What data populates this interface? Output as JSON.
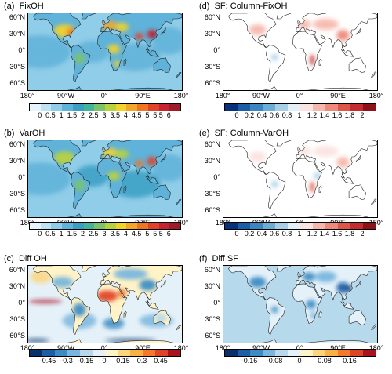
{
  "panels": [
    {
      "label": "(a)",
      "title": "FixOH"
    },
    {
      "label": "(b)",
      "title": "VarOH"
    },
    {
      "label": "(c)",
      "title": "Diff OH"
    },
    {
      "label": "(d)",
      "title": "SF: Column-FixOH"
    },
    {
      "label": "(e)",
      "title": "SF: Column-VarOH"
    },
    {
      "label": "(f)",
      "title": "Diff SF"
    }
  ],
  "lat_ticks": [
    "60°N",
    "30°N",
    "0°",
    "30°S",
    "60°S"
  ],
  "lon_ticks": [
    "180°",
    "90°W",
    "0°",
    "90°E",
    "180°"
  ],
  "colorbars": {
    "oh": [
      "0",
      "0.5",
      "1",
      "1.5",
      "2",
      "2.5",
      "3",
      "3.5",
      "4",
      "4.5",
      "5",
      "5.5",
      "6"
    ],
    "sf_d": [
      "0",
      "0.2",
      "0.4",
      "0.6",
      "0.8",
      "1",
      "1.2",
      "1.4",
      "1.6",
      "1.8",
      "2"
    ],
    "sf_e": [
      "0",
      "0.2",
      "0.4",
      "0.6",
      "0.8",
      "1",
      "1.2",
      "1.4",
      "1.6",
      "1.8",
      "2"
    ],
    "diff_oh": [
      "-0.45",
      "-0.3",
      "-0.15",
      "0",
      "0.15",
      "0.3",
      "0.45"
    ],
    "diff_sf": [
      "-0.16",
      "-0.08",
      "0",
      "0.08",
      "0.16"
    ]
  },
  "palettes": {
    "oh": [
      "#e6f5fb",
      "#bfe3f2",
      "#8fcde8",
      "#5fb2d9",
      "#3a9fc4",
      "#43b39a",
      "#7cc36b",
      "#b8d23f",
      "#f2d22b",
      "#f4a62a",
      "#ef7424",
      "#e0432a",
      "#c8242e",
      "#a01b2a"
    ],
    "sf": [
      "#06327b",
      "#1c5da7",
      "#3b86c0",
      "#6aaed6",
      "#a7d0e6",
      "#e4f0f7",
      "#fbe4e0",
      "#f6b8ad",
      "#ee8a7c",
      "#de5647",
      "#c42c2e",
      "#8f1219"
    ],
    "diff": [
      "#08306b",
      "#1c5fa6",
      "#3c8cc4",
      "#79b6dd",
      "#b7d9ec",
      "#e5f1f9",
      "#fff3c8",
      "#fdd67b",
      "#fbb042",
      "#f47a29",
      "#e04427",
      "#a9131f"
    ]
  }
}
